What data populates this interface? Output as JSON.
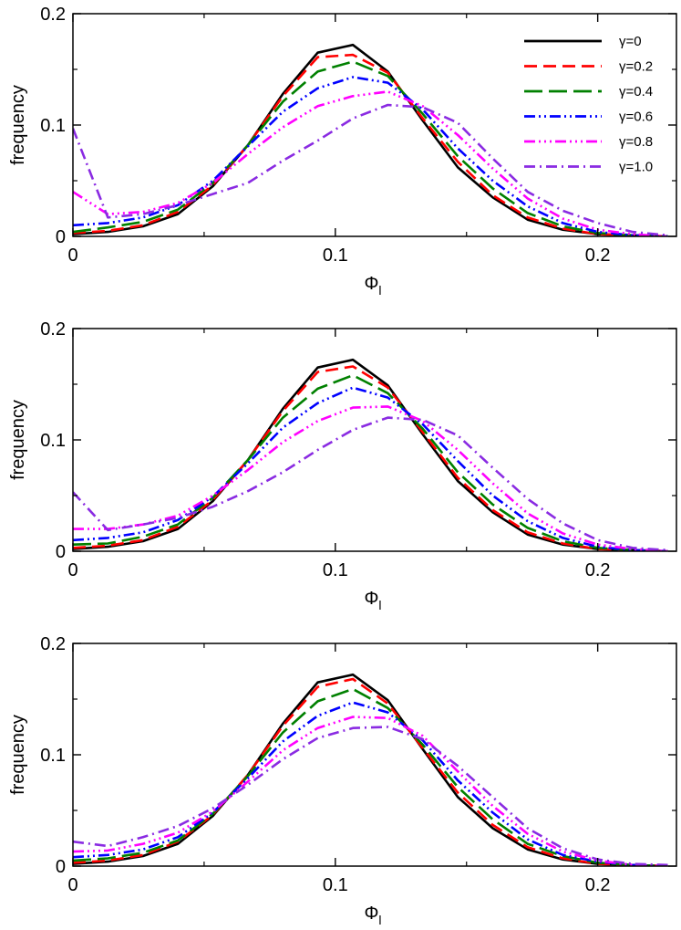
{
  "chart_data": [
    {
      "type": "line",
      "title": "",
      "xlabel": "Φ",
      "xlabel_sub": "l",
      "ylabel": "frequency",
      "xlim": [
        0,
        0.23
      ],
      "ylim": [
        0,
        0.2
      ],
      "xticks": [
        0,
        0.1,
        0.2
      ],
      "xtick_labels": [
        "0",
        "0.1",
        "0.2"
      ],
      "yticks": [
        0,
        0.1,
        0.2
      ],
      "ytick_labels": [
        "0",
        "0.1",
        "0.2"
      ],
      "legend": true,
      "legend_position": "top-right",
      "x": [
        0,
        0.0133,
        0.0267,
        0.04,
        0.0533,
        0.0667,
        0.08,
        0.0933,
        0.1067,
        0.12,
        0.1333,
        0.1467,
        0.16,
        0.1733,
        0.1867,
        0.2,
        0.2133,
        0.2267
      ],
      "series": [
        {
          "name": "γ=0",
          "color": "#000000",
          "values": [
            0.002,
            0.004,
            0.009,
            0.02,
            0.045,
            0.082,
            0.128,
            0.165,
            0.172,
            0.148,
            0.104,
            0.062,
            0.035,
            0.015,
            0.006,
            0.002,
            0.001,
            0.0
          ]
        },
        {
          "name": "γ=0.2",
          "color": "#ff0000",
          "values": [
            0.003,
            0.005,
            0.01,
            0.022,
            0.046,
            0.082,
            0.126,
            0.161,
            0.163,
            0.147,
            0.106,
            0.067,
            0.037,
            0.017,
            0.007,
            0.002,
            0.001,
            0.0
          ]
        },
        {
          "name": "γ=0.4",
          "color": "#008000",
          "values": [
            0.004,
            0.008,
            0.013,
            0.024,
            0.048,
            0.082,
            0.121,
            0.148,
            0.157,
            0.144,
            0.11,
            0.072,
            0.043,
            0.021,
            0.009,
            0.003,
            0.001,
            0.0
          ]
        },
        {
          "name": "γ=0.6",
          "color": "#0000ff",
          "values": [
            0.01,
            0.012,
            0.017,
            0.028,
            0.05,
            0.081,
            0.112,
            0.133,
            0.143,
            0.138,
            0.114,
            0.079,
            0.05,
            0.027,
            0.012,
            0.004,
            0.001,
            0.0
          ]
        },
        {
          "name": "γ=0.8",
          "color": "#ff00ff",
          "values": [
            0.04,
            0.02,
            0.022,
            0.03,
            0.048,
            0.074,
            0.098,
            0.117,
            0.126,
            0.13,
            0.117,
            0.091,
            0.061,
            0.034,
            0.016,
            0.006,
            0.002,
            0.0
          ]
        },
        {
          "name": "γ=1.0",
          "color": "#8a2be2",
          "values": [
            0.097,
            0.017,
            0.02,
            0.028,
            0.038,
            0.048,
            0.068,
            0.086,
            0.106,
            0.118,
            0.116,
            0.102,
            0.07,
            0.04,
            0.023,
            0.012,
            0.004,
            0.001
          ]
        }
      ]
    },
    {
      "type": "line",
      "title": "",
      "xlabel": "Φ",
      "xlabel_sub": "l",
      "ylabel": "frequency",
      "xlim": [
        0,
        0.23
      ],
      "ylim": [
        0,
        0.2
      ],
      "xticks": [
        0,
        0.1,
        0.2
      ],
      "xtick_labels": [
        "0",
        "0.1",
        "0.2"
      ],
      "yticks": [
        0,
        0.1,
        0.2
      ],
      "ytick_labels": [
        "0",
        "0.1",
        "0.2"
      ],
      "legend": false,
      "x": [
        0,
        0.0133,
        0.0267,
        0.04,
        0.0533,
        0.0667,
        0.08,
        0.0933,
        0.1067,
        0.12,
        0.1333,
        0.1467,
        0.16,
        0.1733,
        0.1867,
        0.2,
        0.2133,
        0.2267
      ],
      "series": [
        {
          "name": "γ=0",
          "color": "#000000",
          "values": [
            0.002,
            0.004,
            0.009,
            0.02,
            0.045,
            0.082,
            0.128,
            0.165,
            0.172,
            0.149,
            0.105,
            0.063,
            0.035,
            0.015,
            0.006,
            0.002,
            0.001,
            0.0
          ]
        },
        {
          "name": "γ=0.2",
          "color": "#ff0000",
          "values": [
            0.003,
            0.005,
            0.01,
            0.022,
            0.046,
            0.082,
            0.126,
            0.161,
            0.166,
            0.147,
            0.107,
            0.066,
            0.037,
            0.017,
            0.007,
            0.002,
            0.001,
            0.0
          ]
        },
        {
          "name": "γ=0.4",
          "color": "#008000",
          "values": [
            0.006,
            0.007,
            0.013,
            0.024,
            0.048,
            0.082,
            0.12,
            0.146,
            0.158,
            0.142,
            0.11,
            0.071,
            0.042,
            0.021,
            0.009,
            0.003,
            0.001,
            0.0
          ]
        },
        {
          "name": "γ=0.6",
          "color": "#0000ff",
          "values": [
            0.01,
            0.012,
            0.017,
            0.028,
            0.049,
            0.079,
            0.111,
            0.133,
            0.147,
            0.138,
            0.114,
            0.081,
            0.05,
            0.027,
            0.012,
            0.004,
            0.001,
            0.0
          ]
        },
        {
          "name": "γ=0.8",
          "color": "#ff00ff",
          "values": [
            0.02,
            0.02,
            0.024,
            0.032,
            0.05,
            0.073,
            0.098,
            0.117,
            0.129,
            0.13,
            0.117,
            0.091,
            0.061,
            0.034,
            0.016,
            0.006,
            0.002,
            0.0
          ]
        },
        {
          "name": "γ=1.0",
          "color": "#8a2be2",
          "values": [
            0.053,
            0.019,
            0.024,
            0.03,
            0.04,
            0.054,
            0.071,
            0.091,
            0.109,
            0.12,
            0.118,
            0.104,
            0.075,
            0.047,
            0.025,
            0.01,
            0.003,
            0.001
          ]
        }
      ]
    },
    {
      "type": "line",
      "title": "",
      "xlabel": "Φ",
      "xlabel_sub": "l",
      "ylabel": "frequency",
      "xlim": [
        0,
        0.23
      ],
      "ylim": [
        0,
        0.2
      ],
      "xticks": [
        0,
        0.1,
        0.2
      ],
      "xtick_labels": [
        "0",
        "0.1",
        "0.2"
      ],
      "yticks": [
        0,
        0.1,
        0.2
      ],
      "ytick_labels": [
        "0",
        "0.1",
        "0.2"
      ],
      "legend": false,
      "x": [
        0,
        0.0133,
        0.0267,
        0.04,
        0.0533,
        0.0667,
        0.08,
        0.0933,
        0.1067,
        0.12,
        0.1333,
        0.1467,
        0.16,
        0.1733,
        0.1867,
        0.2,
        0.2133,
        0.2267
      ],
      "series": [
        {
          "name": "γ=0",
          "color": "#000000",
          "values": [
            0.002,
            0.004,
            0.009,
            0.02,
            0.045,
            0.082,
            0.128,
            0.165,
            0.172,
            0.149,
            0.105,
            0.062,
            0.034,
            0.015,
            0.006,
            0.002,
            0.001,
            0.0
          ]
        },
        {
          "name": "γ=0.2",
          "color": "#ff0000",
          "values": [
            0.003,
            0.005,
            0.01,
            0.022,
            0.046,
            0.082,
            0.126,
            0.161,
            0.168,
            0.146,
            0.106,
            0.066,
            0.037,
            0.017,
            0.007,
            0.002,
            0.001,
            0.0
          ]
        },
        {
          "name": "γ=0.4",
          "color": "#008000",
          "values": [
            0.005,
            0.007,
            0.012,
            0.023,
            0.047,
            0.081,
            0.12,
            0.148,
            0.159,
            0.142,
            0.109,
            0.071,
            0.042,
            0.02,
            0.009,
            0.003,
            0.001,
            0.0
          ]
        },
        {
          "name": "γ=0.6",
          "color": "#0000ff",
          "values": [
            0.008,
            0.01,
            0.015,
            0.026,
            0.048,
            0.079,
            0.112,
            0.135,
            0.147,
            0.138,
            0.113,
            0.077,
            0.048,
            0.024,
            0.01,
            0.004,
            0.001,
            0.0
          ]
        },
        {
          "name": "γ=0.8",
          "color": "#ff00ff",
          "values": [
            0.013,
            0.014,
            0.02,
            0.03,
            0.049,
            0.076,
            0.104,
            0.124,
            0.134,
            0.133,
            0.117,
            0.085,
            0.054,
            0.029,
            0.013,
            0.005,
            0.001,
            0.0
          ]
        },
        {
          "name": "γ=1.0",
          "color": "#8a2be2",
          "values": [
            0.022,
            0.018,
            0.026,
            0.036,
            0.052,
            0.073,
            0.096,
            0.115,
            0.124,
            0.125,
            0.114,
            0.09,
            0.062,
            0.034,
            0.016,
            0.006,
            0.002,
            0.001
          ]
        }
      ]
    }
  ]
}
